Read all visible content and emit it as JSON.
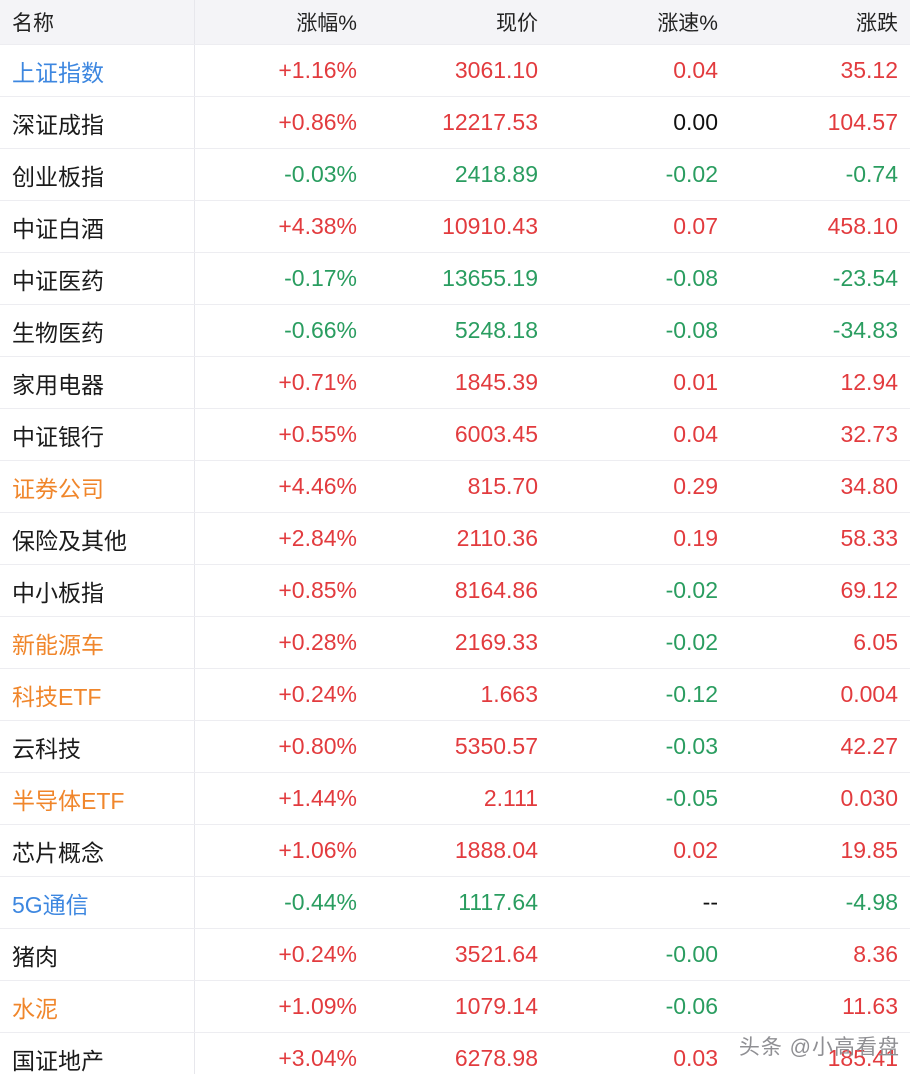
{
  "table": {
    "columns": [
      {
        "label": "名称"
      },
      {
        "label": "涨幅%"
      },
      {
        "label": "现价"
      },
      {
        "label": "涨速%"
      },
      {
        "label": "涨跌"
      }
    ],
    "rows": [
      {
        "name": "上证指数",
        "name_style": "blue",
        "change_pct": "+1.16%",
        "price": "3061.10",
        "speed": "0.04",
        "change": "35.12",
        "trend": "up",
        "speed_trend": "up"
      },
      {
        "name": "深证成指",
        "name_style": "default",
        "change_pct": "+0.86%",
        "price": "12217.53",
        "speed": "0.00",
        "change": "104.57",
        "trend": "up",
        "speed_trend": "neutral"
      },
      {
        "name": "创业板指",
        "name_style": "default",
        "change_pct": "-0.03%",
        "price": "2418.89",
        "speed": "-0.02",
        "change": "-0.74",
        "trend": "down",
        "speed_trend": "down"
      },
      {
        "name": "中证白酒",
        "name_style": "default",
        "change_pct": "+4.38%",
        "price": "10910.43",
        "speed": "0.07",
        "change": "458.10",
        "trend": "up",
        "speed_trend": "up"
      },
      {
        "name": "中证医药",
        "name_style": "default",
        "change_pct": "-0.17%",
        "price": "13655.19",
        "speed": "-0.08",
        "change": "-23.54",
        "trend": "down",
        "speed_trend": "down"
      },
      {
        "name": "生物医药",
        "name_style": "default",
        "change_pct": "-0.66%",
        "price": "5248.18",
        "speed": "-0.08",
        "change": "-34.83",
        "trend": "down",
        "speed_trend": "down"
      },
      {
        "name": "家用电器",
        "name_style": "default",
        "change_pct": "+0.71%",
        "price": "1845.39",
        "speed": "0.01",
        "change": "12.94",
        "trend": "up",
        "speed_trend": "up"
      },
      {
        "name": "中证银行",
        "name_style": "default",
        "change_pct": "+0.55%",
        "price": "6003.45",
        "speed": "0.04",
        "change": "32.73",
        "trend": "up",
        "speed_trend": "up"
      },
      {
        "name": "证券公司",
        "name_style": "orange",
        "change_pct": "+4.46%",
        "price": "815.70",
        "speed": "0.29",
        "change": "34.80",
        "trend": "up",
        "speed_trend": "up"
      },
      {
        "name": "保险及其他",
        "name_style": "default",
        "change_pct": "+2.84%",
        "price": "2110.36",
        "speed": "0.19",
        "change": "58.33",
        "trend": "up",
        "speed_trend": "up"
      },
      {
        "name": "中小板指",
        "name_style": "default",
        "change_pct": "+0.85%",
        "price": "8164.86",
        "speed": "-0.02",
        "change": "69.12",
        "trend": "up",
        "speed_trend": "down"
      },
      {
        "name": "新能源车",
        "name_style": "orange",
        "change_pct": "+0.28%",
        "price": "2169.33",
        "speed": "-0.02",
        "change": "6.05",
        "trend": "up",
        "speed_trend": "down"
      },
      {
        "name": "科技ETF",
        "name_style": "orange",
        "change_pct": "+0.24%",
        "price": "1.663",
        "speed": "-0.12",
        "change": "0.004",
        "trend": "up",
        "speed_trend": "down"
      },
      {
        "name": "云科技",
        "name_style": "default",
        "change_pct": "+0.80%",
        "price": "5350.57",
        "speed": "-0.03",
        "change": "42.27",
        "trend": "up",
        "speed_trend": "down"
      },
      {
        "name": "半导体ETF",
        "name_style": "orange",
        "change_pct": "+1.44%",
        "price": "2.111",
        "speed": "-0.05",
        "change": "0.030",
        "trend": "up",
        "speed_trend": "down"
      },
      {
        "name": "芯片概念",
        "name_style": "default",
        "change_pct": "+1.06%",
        "price": "1888.04",
        "speed": "0.02",
        "change": "19.85",
        "trend": "up",
        "speed_trend": "up"
      },
      {
        "name": "5G通信",
        "name_style": "blue",
        "change_pct": "-0.44%",
        "price": "1117.64",
        "speed": "--",
        "change": "-4.98",
        "trend": "down",
        "speed_trend": "neutral"
      },
      {
        "name": "猪肉",
        "name_style": "default",
        "change_pct": "+0.24%",
        "price": "3521.64",
        "speed": "-0.00",
        "change": "8.36",
        "trend": "up",
        "speed_trend": "down"
      },
      {
        "name": "水泥",
        "name_style": "orange",
        "change_pct": "+1.09%",
        "price": "1079.14",
        "speed": "-0.06",
        "change": "11.63",
        "trend": "up",
        "speed_trend": "down"
      },
      {
        "name": "国证地产",
        "name_style": "default",
        "change_pct": "+3.04%",
        "price": "6278.98",
        "speed": "0.03",
        "change": "185.41",
        "trend": "up",
        "speed_trend": "up"
      }
    ]
  },
  "watermark": "头条 @小高看盘",
  "colors": {
    "up": "#e23b3e",
    "down": "#2a9d60",
    "neutral": "#111111",
    "name_blue": "#3d87e0",
    "name_orange": "#f0862b",
    "header_bg": "#f4f4f7"
  }
}
